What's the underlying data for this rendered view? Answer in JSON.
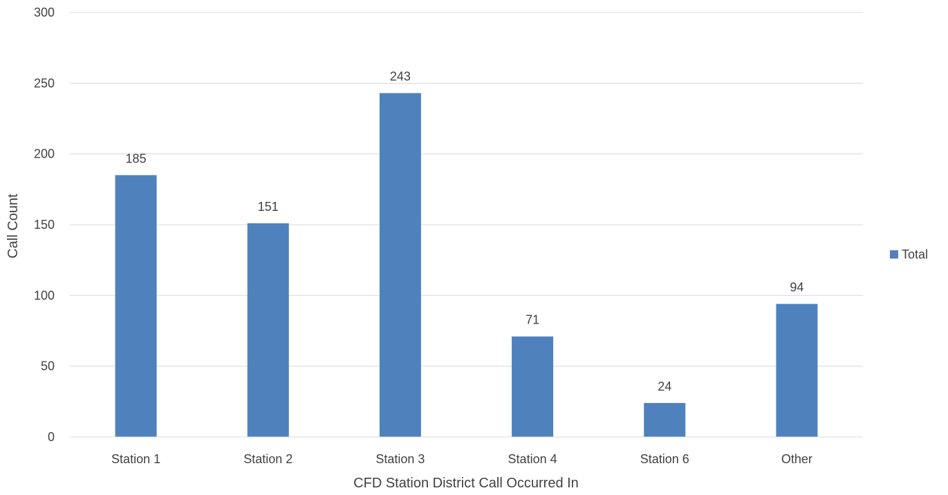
{
  "chart_data": {
    "type": "bar",
    "title": "",
    "xlabel": "CFD Station District Call Occurred In",
    "ylabel": "Call Count",
    "categories": [
      "Station 1",
      "Station 2",
      "Station 3",
      "Station 4",
      "Station 6",
      "Other"
    ],
    "series": [
      {
        "name": "Total",
        "values": [
          185,
          151,
          243,
          71,
          24,
          94
        ],
        "color": "#4f81bd"
      }
    ],
    "ylim": [
      0,
      300
    ],
    "yticks": [
      0,
      50,
      100,
      150,
      200,
      250,
      300
    ],
    "ytick_labels": [
      "0",
      "50",
      "100",
      "150",
      "200",
      "250",
      "300"
    ],
    "data_labels": [
      "185",
      "151",
      "243",
      "71",
      "24",
      "94"
    ],
    "grid": true,
    "gridline_color": "#d9d9d9",
    "legend": {
      "position": "right",
      "entries": [
        "Total"
      ]
    }
  }
}
